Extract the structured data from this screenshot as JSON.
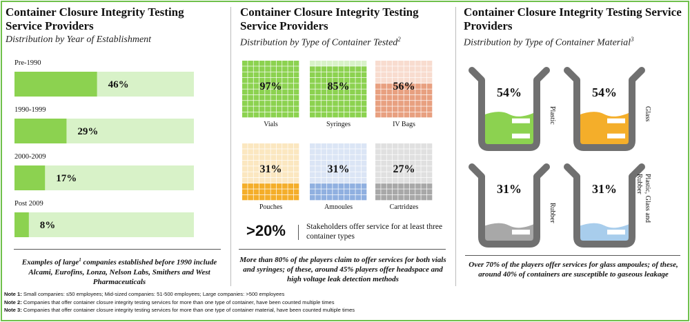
{
  "panels": [
    {
      "title": "Container Closure Integrity Testing Service Providers",
      "subtitle": "Distribution by Year of Establishment",
      "footnote": "Examples of large¹ companies established before 1990 include Alcami, Eurofins, Lonza, Nelson Labs, Smithers and West Pharmaceuticals"
    },
    {
      "title": "Container Closure Integrity Testing Service Providers",
      "subtitle": "Distribution by Type of Container Tested",
      "subtitle_sup": "2",
      "stat_value": ">20%",
      "stat_text": "Stakeholders offer service for at least three container types",
      "footnote": "More than 80% of the players claim to offer services for both vials and syringes; of these, around 45% players offer headspace and high voltage leak detection methods"
    },
    {
      "title": "Container Closure Integrity Testing Service Providers",
      "subtitle": "Distribution by Type of Container Material",
      "subtitle_sup": "3",
      "footnote": "Over 70% of the players offer services for glass ampoules; of these, around 40% of containers are susceptible to gaseous leakage"
    }
  ],
  "notes": [
    {
      "label": "Note 1:",
      "text": "Small companies: ≤50 employees; Mid-sized companies: 51-500 employees; Large companies: >500 employees"
    },
    {
      "label": "Note 2:",
      "text": "Companies that offer container closure integrity testing services for more than one type of container, have been counted multiple times"
    },
    {
      "label": "Note 3:",
      "text": "Companies that offer container closure integrity testing services for more than one type of container material, have been counted multiple times"
    }
  ],
  "colors": {
    "green": "#8cd250",
    "green_light": "#d8f2c8",
    "orange": "#f4ae2a",
    "orange_light": "#fbe7c0",
    "rose": "#e8a080",
    "rose_light": "#f8dccf",
    "blue": "#90b0e0",
    "blue_light": "#dbe5f5",
    "gray": "#a8a8a8",
    "gray_light": "#e0e0e0",
    "beaker_outline": "#707070",
    "beaker_blue": "#a8cdec",
    "frame": "#6fc04b"
  },
  "chart_data": [
    {
      "type": "bar",
      "orientation": "horizontal",
      "categories": [
        "Pre-1990",
        "1990-1999",
        "2000-2009",
        "Post 2009"
      ],
      "values": [
        46,
        29,
        17,
        8
      ],
      "labels": [
        "46%",
        "29%",
        "17%",
        "8%"
      ],
      "unit": "%",
      "xlim": [
        0,
        100
      ]
    },
    {
      "type": "waffle",
      "categories": [
        "Vials",
        "Syringes",
        "IV Bags",
        "Pouches",
        "Ampoules",
        "Cartridges"
      ],
      "values": [
        97,
        85,
        56,
        31,
        31,
        27
      ],
      "labels": [
        "97%",
        "85%",
        "56%",
        "31%",
        "31%",
        "27%"
      ],
      "colors": [
        "green",
        "green",
        "rose",
        "orange",
        "blue",
        "gray"
      ]
    },
    {
      "type": "beaker",
      "categories": [
        "Plastic",
        "Glass",
        "Rubber",
        "Plastic, Glass and Rubber"
      ],
      "values": [
        54,
        54,
        31,
        31
      ],
      "labels": [
        "54%",
        "54%",
        "31%",
        "31%"
      ],
      "colors": [
        "green",
        "orange",
        "gray",
        "beaker_blue"
      ]
    }
  ]
}
